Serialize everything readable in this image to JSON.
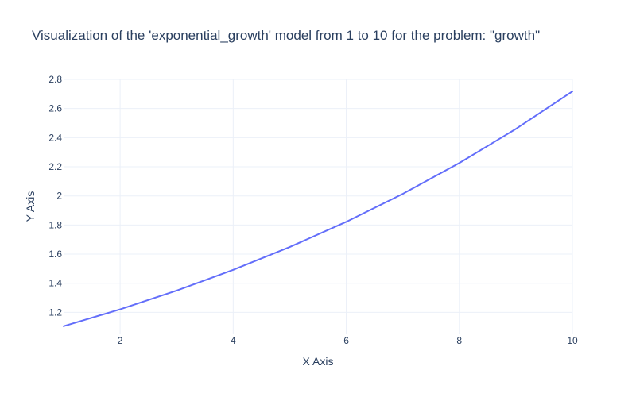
{
  "chart_data": {
    "type": "line",
    "title": "Visualization of the 'exponential_growth' model from 1 to 10 for the problem: \"growth\"",
    "xlabel": "X Axis",
    "ylabel": "Y Axis",
    "xlim": [
      1,
      10
    ],
    "ylim": [
      1.055,
      2.8
    ],
    "grid": true,
    "x_ticks": [
      2,
      4,
      6,
      8,
      10
    ],
    "y_ticks": [
      1.2,
      1.4,
      1.6,
      1.8,
      2,
      2.2,
      2.4,
      2.6,
      2.8
    ],
    "series": [
      {
        "color": "#636efa",
        "x": [
          1,
          2,
          3,
          4,
          5,
          6,
          7,
          8,
          9,
          10
        ],
        "y": [
          1.105,
          1.221,
          1.35,
          1.492,
          1.649,
          1.822,
          2.014,
          2.226,
          2.46,
          2.718
        ]
      }
    ]
  }
}
